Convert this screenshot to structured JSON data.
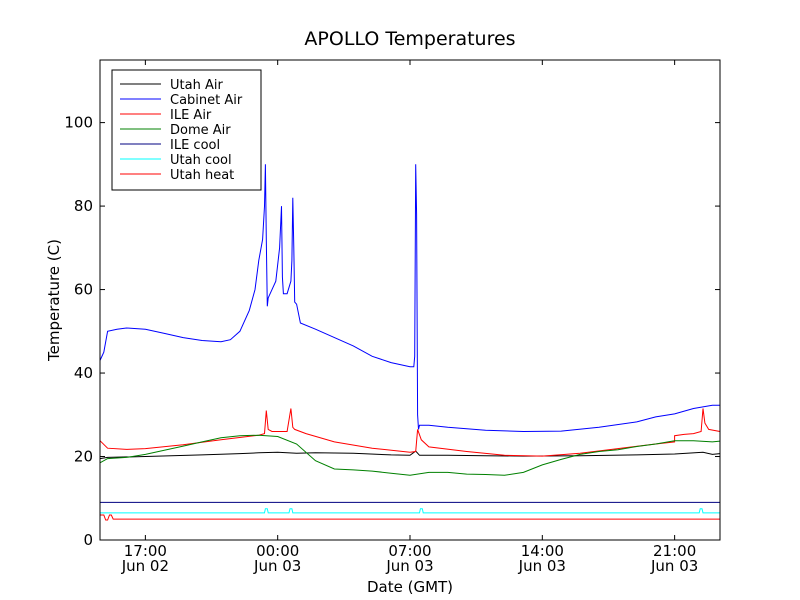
{
  "chart_data": {
    "type": "line",
    "title": "APOLLO Temperatures",
    "xlabel": "Date (GMT)",
    "ylabel": "Temperature (C)",
    "x_unit": "hours since Jun 02 00:00 GMT",
    "xlim": [
      14.6,
      47.4
    ],
    "ylim": [
      0,
      115
    ],
    "x_ticks": [
      {
        "value": 17,
        "time": "17:00",
        "date": "Jun 02"
      },
      {
        "value": 24,
        "time": "00:00",
        "date": "Jun 03"
      },
      {
        "value": 31,
        "time": "07:00",
        "date": "Jun 03"
      },
      {
        "value": 38,
        "time": "14:00",
        "date": "Jun 03"
      },
      {
        "value": 45,
        "time": "21:00",
        "date": "Jun 03"
      }
    ],
    "y_ticks": [
      {
        "value": 0,
        "label": "0"
      },
      {
        "value": 20,
        "label": "20"
      },
      {
        "value": 40,
        "label": "40"
      },
      {
        "value": 60,
        "label": "60"
      },
      {
        "value": 80,
        "label": "80"
      },
      {
        "value": 100,
        "label": "100"
      }
    ],
    "legend_position": "top-left",
    "series": [
      {
        "name": "Utah Air",
        "color": "#000000",
        "x": [
          14.6,
          15,
          17,
          20,
          22,
          23,
          24,
          25,
          26,
          28,
          30,
          31,
          31.3,
          31.5,
          33,
          35,
          37,
          40,
          43,
          45,
          46.5,
          47,
          47.4
        ],
        "y": [
          19.5,
          19.8,
          20,
          20.4,
          20.7,
          20.9,
          21,
          20.8,
          20.9,
          20.8,
          20.4,
          20.3,
          21.3,
          20.3,
          20.3,
          20.2,
          20.1,
          20.2,
          20.4,
          20.6,
          21,
          20.5,
          20.7
        ]
      },
      {
        "name": "Cabinet Air",
        "color": "#0000ff",
        "x": [
          14.6,
          14.8,
          15,
          15.5,
          16,
          17,
          18,
          19,
          20,
          21,
          21.5,
          22,
          22.5,
          22.8,
          23,
          23.2,
          23.3,
          23.35,
          23.4,
          23.45,
          23.5,
          23.7,
          23.9,
          24.1,
          24.2,
          24.25,
          24.3,
          24.5,
          24.7,
          24.75,
          24.8,
          24.85,
          24.9,
          25,
          25.2,
          26,
          27,
          28,
          29,
          30,
          31,
          31.2,
          31.25,
          31.3,
          31.35,
          31.4,
          31.45,
          31.5,
          32,
          33,
          35,
          37,
          39,
          41,
          43,
          44,
          45,
          46,
          47,
          47.4
        ],
        "y": [
          43,
          45,
          50,
          50.5,
          50.8,
          50.5,
          49.5,
          48.5,
          47.8,
          47.5,
          48,
          50,
          55,
          60,
          67,
          72,
          80,
          90,
          72,
          56,
          58,
          60,
          62,
          70,
          80,
          63,
          59,
          59,
          62,
          67,
          82,
          70,
          57,
          56.5,
          52,
          50.5,
          48.5,
          46.5,
          44,
          42.5,
          41.5,
          41.5,
          44,
          90,
          78,
          30,
          26.5,
          27.5,
          27.5,
          27,
          26.3,
          26,
          26.1,
          27,
          28.3,
          29.5,
          30.2,
          31.5,
          32.3,
          32.3
        ]
      },
      {
        "name": "ILE Air",
        "color": "#ff0000",
        "x": [
          14.6,
          15,
          16,
          17,
          19,
          21,
          23,
          23.3,
          23.4,
          23.5,
          23.7,
          24.5,
          24.7,
          24.8,
          24.9,
          25.5,
          27,
          29,
          31,
          31.3,
          31.4,
          31.6,
          32,
          34,
          36,
          38,
          40,
          42,
          44,
          45,
          45,
          45.5,
          46,
          46.4,
          46.5,
          46.6,
          46.8,
          47.4
        ],
        "y": [
          23.8,
          22,
          21.7,
          21.9,
          22.8,
          24,
          25.1,
          25.5,
          31,
          26.5,
          26,
          26,
          31.5,
          27,
          26.5,
          25.5,
          23.5,
          22,
          21,
          21.2,
          26.5,
          24,
          22.3,
          21.2,
          20.3,
          20.1,
          20.8,
          21.9,
          23,
          23.5,
          25,
          25.3,
          25.5,
          26,
          31.5,
          28,
          26.5,
          26
        ]
      },
      {
        "name": "Dome Air",
        "color": "#008000",
        "x": [
          14.6,
          15,
          16,
          17,
          18,
          19,
          20,
          21,
          22,
          23,
          24,
          25,
          26,
          27,
          28,
          29,
          30,
          31,
          32,
          33,
          34,
          35,
          36,
          37,
          38,
          39,
          40,
          41,
          42,
          43,
          44,
          45,
          46,
          47,
          47.4
        ],
        "y": [
          18.5,
          19.5,
          19.8,
          20.5,
          21.5,
          22.5,
          23.5,
          24.5,
          25,
          25.1,
          24.8,
          23,
          19,
          17,
          16.8,
          16.5,
          16,
          15.5,
          16.2,
          16.2,
          15.8,
          15.7,
          15.5,
          16.2,
          18,
          19.3,
          20.5,
          21.2,
          21.6,
          22.4,
          23,
          23.8,
          23.8,
          23.5,
          23.7
        ]
      },
      {
        "name": "ILE cool",
        "color": "#000080",
        "x": [
          14.6,
          47.4
        ],
        "y": [
          9,
          9
        ]
      },
      {
        "name": "Utah cool",
        "color": "#00ffff",
        "x": [
          14.6,
          23.3,
          23.35,
          23.45,
          23.5,
          24.6,
          24.65,
          24.75,
          24.8,
          31.5,
          31.55,
          31.65,
          31.7,
          46.3,
          46.35,
          46.45,
          46.5,
          47.4
        ],
        "y": [
          6.5,
          6.5,
          7.5,
          7.5,
          6.5,
          6.5,
          7.5,
          7.5,
          6.5,
          6.5,
          7.5,
          7.5,
          6.5,
          6.5,
          7.5,
          7.5,
          6.5,
          6.5
        ]
      },
      {
        "name": "Utah heat",
        "color": "#ff0000",
        "x": [
          14.6,
          14.8,
          14.9,
          15.0,
          15.1,
          15.2,
          15.3,
          15.5,
          47.4
        ],
        "y": [
          6.0,
          6.0,
          4.8,
          4.8,
          6.0,
          6.0,
          5.0,
          5.0,
          5.0
        ]
      }
    ]
  }
}
